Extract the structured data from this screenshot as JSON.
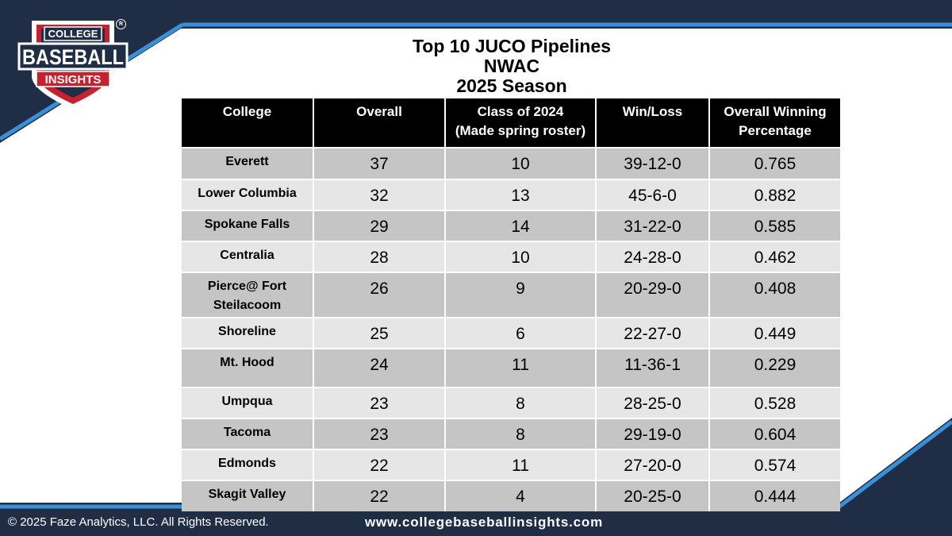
{
  "header": {
    "title_line1": "Top 10 JUCO Pipelines",
    "title_line2": "NWAC",
    "title_line3": "2025 Season"
  },
  "logo": {
    "top_text": "COLLEGE",
    "main_text": "BASEBALL",
    "bottom_text": "INSIGHTS",
    "registered_mark": "R"
  },
  "table": {
    "columns": [
      "College",
      "Overall",
      "Class of 2024\n(Made spring roster)",
      "Win/Loss",
      "Overall Winning Percentage"
    ],
    "rows": [
      {
        "college": "Everett",
        "overall": "37",
        "class2024": "10",
        "winloss": "39-12-0",
        "pct": "0.765"
      },
      {
        "college": "Lower Columbia",
        "overall": "32",
        "class2024": "13",
        "winloss": "45-6-0",
        "pct": "0.882"
      },
      {
        "college": "Spokane Falls",
        "overall": "29",
        "class2024": "14",
        "winloss": "31-22-0",
        "pct": "0.585"
      },
      {
        "college": "Centralia",
        "overall": "28",
        "class2024": "10",
        "winloss": "24-28-0",
        "pct": "0.462"
      },
      {
        "college": "Pierce@ Fort Steilacoom",
        "overall": "26",
        "class2024": "9",
        "winloss": "20-29-0",
        "pct": "0.408"
      },
      {
        "college": "Shoreline",
        "overall": "25",
        "class2024": "6",
        "winloss": "22-27-0",
        "pct": "0.449"
      },
      {
        "college": "Mt. Hood",
        "overall": "24",
        "class2024": "11",
        "winloss": "11-36-1",
        "pct": "0.229"
      },
      {
        "college": "Umpqua",
        "overall": "23",
        "class2024": "8",
        "winloss": "28-25-0",
        "pct": "0.528"
      },
      {
        "college": "Tacoma",
        "overall": "23",
        "class2024": "8",
        "winloss": "29-19-0",
        "pct": "0.604"
      },
      {
        "college": "Edmonds",
        "overall": "22",
        "class2024": "11",
        "winloss": "27-20-0",
        "pct": "0.574"
      },
      {
        "college": "Skagit Valley",
        "overall": "22",
        "class2024": "4",
        "winloss": "20-25-0",
        "pct": "0.444"
      }
    ]
  },
  "footer": {
    "copyright": "© 2025 Faze Analytics, LLC. All Rights Reserved.",
    "url": "www.collegebaseballinsights.com"
  },
  "colors": {
    "navy": "#1f2d45",
    "accent_blue": "#3a8fd9",
    "logo_red": "#c8202f",
    "row_dark": "#c5c5c5",
    "row_light": "#e6e6e6",
    "header_black": "#000000"
  }
}
